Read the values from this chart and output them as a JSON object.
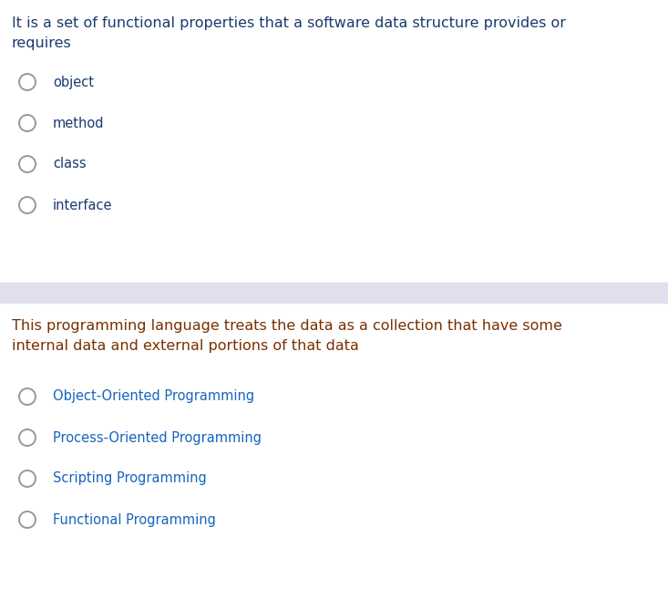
{
  "bg_color": "#ffffff",
  "divider_color": "#e0e0ee",
  "q1_text_line1": "It is a set of functional properties that a software data structure provides or",
  "q1_text_line2": "requires",
  "q1_text_color": "#1a3a6e",
  "q1_options": [
    "object",
    "method",
    "class",
    "interface"
  ],
  "q1_option_color": "#1a3a6e",
  "q2_text_line1": "This programming language treats the data as a collection that have some",
  "q2_text_line2": "internal data and external portions of that data",
  "q2_text_color": "#7a3000",
  "q2_options": [
    "Object-Oriented Programming",
    "Process-Oriented Programming",
    "Scripting Programming",
    "Functional Programming"
  ],
  "q2_option_color": "#1565c0",
  "circle_edge_color": "#999999",
  "circle_fill_color": "#ffffff",
  "q1_text_fontsize": 11.5,
  "q2_text_fontsize": 11.5,
  "option_fontsize": 10.5
}
